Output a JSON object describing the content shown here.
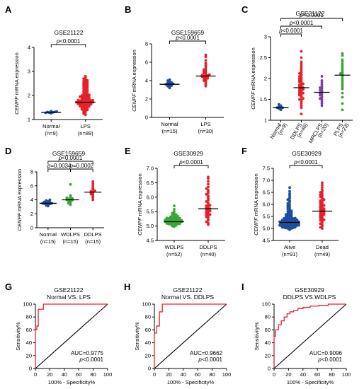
{
  "chart_data": [
    {
      "panel": "A",
      "type": "scatter",
      "title": "GSE21122",
      "ylabel": "CENPF mRNA expression",
      "ylim": [
        1,
        4
      ],
      "yticks": [
        1,
        2,
        3,
        4
      ],
      "groups": [
        {
          "name": "Normal",
          "n": "(n=9)",
          "color": "#1f4e9c",
          "median": 1.3,
          "values": [
            1.27,
            1.29,
            1.3,
            1.31,
            1.32,
            1.28,
            1.33,
            1.26,
            1.35
          ]
        },
        {
          "name": "LPS",
          "n": "(n=89)",
          "color": "#e8202a",
          "median": 1.72,
          "values": [
            1.2,
            1.25,
            1.3,
            1.32,
            1.35,
            1.38,
            1.4,
            1.42,
            1.44,
            1.45,
            1.47,
            1.48,
            1.5,
            1.5,
            1.52,
            1.53,
            1.55,
            1.56,
            1.58,
            1.58,
            1.6,
            1.6,
            1.62,
            1.63,
            1.64,
            1.65,
            1.66,
            1.67,
            1.68,
            1.68,
            1.69,
            1.7,
            1.7,
            1.71,
            1.72,
            1.72,
            1.73,
            1.74,
            1.75,
            1.76,
            1.77,
            1.78,
            1.79,
            1.8,
            1.8,
            1.82,
            1.83,
            1.84,
            1.85,
            1.86,
            1.88,
            1.9,
            1.9,
            1.92,
            1.93,
            1.95,
            1.96,
            1.98,
            2.0,
            2.0,
            2.02,
            2.05,
            2.07,
            2.1,
            2.12,
            2.15,
            2.18,
            2.2,
            2.22,
            2.25,
            2.28,
            2.3,
            2.33,
            2.35,
            2.38,
            2.4,
            2.42,
            2.45,
            2.48,
            2.5,
            2.52,
            2.55,
            2.58,
            2.6,
            2.63,
            2.65,
            2.7,
            2.75,
            2.8
          ]
        }
      ],
      "comparisons": [
        {
          "from": 0,
          "to": 1,
          "text": "p<0.0001"
        }
      ]
    },
    {
      "panel": "B",
      "type": "scatter",
      "title": "GSE159659",
      "ylabel": "CENPF mRNA expression",
      "ylim": [
        0,
        8
      ],
      "yticks": [
        0,
        2,
        4,
        6,
        8
      ],
      "groups": [
        {
          "name": "Normal",
          "n": "(n=15)",
          "color": "#1f4e9c",
          "median": 3.6,
          "values": [
            3.2,
            3.3,
            3.4,
            3.45,
            3.5,
            3.55,
            3.6,
            3.6,
            3.65,
            3.7,
            3.75,
            3.8,
            3.9,
            4.0,
            4.1
          ]
        },
        {
          "name": "LPS",
          "n": "(n=30)",
          "color": "#e8202a",
          "median": 4.5,
          "values": [
            3.4,
            3.6,
            3.8,
            3.9,
            4.0,
            4.1,
            4.2,
            4.25,
            4.3,
            4.35,
            4.4,
            4.45,
            4.5,
            4.5,
            4.55,
            4.6,
            4.65,
            4.7,
            4.8,
            4.9,
            5.0,
            5.1,
            5.2,
            5.3,
            5.5,
            5.7,
            5.9,
            6.2,
            6.6,
            6.8
          ]
        }
      ],
      "comparisons": [
        {
          "from": 0,
          "to": 1,
          "text": "p<0.0001"
        }
      ]
    },
    {
      "panel": "C",
      "type": "scatter",
      "title": "GSE21122",
      "ylabel": "CENPF mRNA expression",
      "ylim": [
        1.0,
        3.0
      ],
      "yticks": [
        1.0,
        1.5,
        2.0,
        2.5,
        3.0
      ],
      "rotated_xlabels": true,
      "groups": [
        {
          "name": "Normal",
          "n": "(n=9)",
          "color": "#1f4e9c",
          "median": 1.3,
          "values": [
            1.25,
            1.27,
            1.28,
            1.3,
            1.3,
            1.31,
            1.33,
            1.35,
            1.38
          ]
        },
        {
          "name": "DDLPS",
          "n": "(n=46)",
          "color": "#e8202a",
          "median": 1.78,
          "values": [
            1.15,
            1.3,
            1.35,
            1.4,
            1.45,
            1.48,
            1.5,
            1.52,
            1.55,
            1.57,
            1.6,
            1.62,
            1.63,
            1.65,
            1.67,
            1.68,
            1.7,
            1.72,
            1.74,
            1.75,
            1.77,
            1.78,
            1.8,
            1.82,
            1.84,
            1.85,
            1.87,
            1.9,
            1.92,
            1.94,
            1.96,
            1.98,
            2.0,
            2.02,
            2.05,
            2.08,
            2.1,
            2.12,
            2.15,
            2.2,
            2.25,
            2.3,
            2.35,
            2.4,
            2.5,
            2.65
          ]
        },
        {
          "name": "MRCLPS",
          "n": "(n=20)",
          "color": "#7b3fa6",
          "median": 1.67,
          "values": [
            1.35,
            1.4,
            1.45,
            1.5,
            1.52,
            1.55,
            1.58,
            1.6,
            1.63,
            1.65,
            1.68,
            1.7,
            1.72,
            1.75,
            1.78,
            1.8,
            1.85,
            1.9,
            1.95,
            2.05
          ]
        },
        {
          "name": "PLPS",
          "n": "(n=23)",
          "color": "#3aa635",
          "median": 2.08,
          "values": [
            1.25,
            1.4,
            1.55,
            1.65,
            1.75,
            1.8,
            1.85,
            1.9,
            1.95,
            2.0,
            2.05,
            2.08,
            2.1,
            2.12,
            2.15,
            2.2,
            2.25,
            2.3,
            2.35,
            2.4,
            2.45,
            2.55,
            2.6
          ]
        }
      ],
      "comparisons": [
        {
          "from": 0,
          "to": 1,
          "text": "p<0.0001"
        },
        {
          "from": 0,
          "to": 2,
          "text": "p<0.0001"
        },
        {
          "from": 0,
          "to": 3,
          "text": "p<0.0001"
        }
      ]
    },
    {
      "panel": "D",
      "type": "scatter",
      "title": "GSE159659",
      "ylabel": "CENPF mRNA expression",
      "ylim": [
        0,
        8
      ],
      "yticks": [
        0,
        2,
        4,
        6,
        8
      ],
      "groups": [
        {
          "name": "Normal",
          "n": "(n=15)",
          "color": "#1f4e9c",
          "median": 3.5,
          "values": [
            3.1,
            3.2,
            3.3,
            3.35,
            3.4,
            3.45,
            3.5,
            3.5,
            3.55,
            3.6,
            3.65,
            3.7,
            3.8,
            3.9,
            4.0
          ]
        },
        {
          "name": "WDLPS",
          "n": "(n=15)",
          "color": "#3aa635",
          "median": 4.0,
          "values": [
            3.3,
            3.5,
            3.6,
            3.7,
            3.8,
            3.9,
            3.95,
            4.0,
            4.05,
            4.1,
            4.2,
            4.3,
            4.4,
            4.6,
            6.2
          ]
        },
        {
          "name": "DDLPS",
          "n": "(n=15)",
          "color": "#e8202a",
          "median": 5.1,
          "values": [
            4.0,
            4.3,
            4.5,
            4.7,
            4.8,
            4.9,
            5.0,
            5.1,
            5.2,
            5.3,
            5.5,
            5.7,
            6.0,
            6.3,
            6.6
          ]
        }
      ],
      "comparisons": [
        {
          "from": 0,
          "to": 2,
          "text": "p<0.0001"
        },
        {
          "from": 0,
          "to": 1,
          "text": "p=0.0034"
        },
        {
          "from": 1,
          "to": 2,
          "text": "p=0.0002"
        }
      ]
    },
    {
      "panel": "E",
      "type": "scatter",
      "title": "GSE30929",
      "ylabel": "CENPF mRNA expression",
      "ylim": [
        4.5,
        7.0
      ],
      "yticks": [
        4.5,
        5.0,
        5.5,
        6.0,
        6.5,
        7.0
      ],
      "ytick_format": "1",
      "groups": [
        {
          "name": "WDLPS",
          "n": "(n=52)",
          "color": "#3aa635",
          "median": 5.15,
          "values": [
            4.98,
            5.0,
            5.02,
            5.03,
            5.04,
            5.05,
            5.06,
            5.07,
            5.07,
            5.08,
            5.09,
            5.1,
            5.1,
            5.11,
            5.12,
            5.12,
            5.13,
            5.14,
            5.14,
            5.15,
            5.15,
            5.16,
            5.16,
            5.17,
            5.17,
            5.18,
            5.18,
            5.19,
            5.2,
            5.2,
            5.21,
            5.22,
            5.22,
            5.23,
            5.24,
            5.25,
            5.26,
            5.27,
            5.28,
            5.29,
            5.3,
            5.31,
            5.32,
            5.34,
            5.36,
            5.38,
            5.4,
            5.42,
            5.45,
            5.5,
            5.58,
            5.7
          ]
        },
        {
          "name": "DDLPS",
          "n": "(n=40)",
          "color": "#e8202a",
          "median": 5.6,
          "values": [
            5.05,
            5.1,
            5.15,
            5.2,
            5.25,
            5.3,
            5.32,
            5.35,
            5.38,
            5.4,
            5.42,
            5.45,
            5.48,
            5.5,
            5.52,
            5.55,
            5.57,
            5.6,
            5.62,
            5.65,
            5.68,
            5.7,
            5.72,
            5.75,
            5.8,
            5.85,
            5.9,
            5.95,
            6.0,
            6.05,
            6.1,
            6.15,
            6.2,
            6.25,
            6.3,
            6.35,
            6.45,
            6.55,
            6.65,
            6.7
          ]
        }
      ],
      "comparisons": [
        {
          "from": 0,
          "to": 1,
          "text": "p<0.0001"
        }
      ]
    },
    {
      "panel": "F",
      "type": "scatter",
      "title": "GSE30929",
      "ylabel": "CENPF mRNA expression",
      "ylim": [
        4.5,
        7.5
      ],
      "yticks": [
        4.5,
        5.0,
        5.5,
        6.0,
        6.5,
        7.0,
        7.5
      ],
      "ytick_format": "1",
      "groups": [
        {
          "name": "Alive",
          "n": "(n=91)",
          "color": "#1f4e9c",
          "median": 5.25,
          "values": [
            4.95,
            4.98,
            5.0,
            5.0,
            5.02,
            5.03,
            5.04,
            5.05,
            5.05,
            5.06,
            5.07,
            5.08,
            5.08,
            5.09,
            5.1,
            5.1,
            5.11,
            5.12,
            5.12,
            5.13,
            5.13,
            5.14,
            5.15,
            5.15,
            5.16,
            5.16,
            5.17,
            5.18,
            5.18,
            5.19,
            5.2,
            5.2,
            5.21,
            5.22,
            5.22,
            5.23,
            5.24,
            5.24,
            5.25,
            5.25,
            5.26,
            5.27,
            5.28,
            5.28,
            5.29,
            5.3,
            5.3,
            5.31,
            5.32,
            5.33,
            5.34,
            5.35,
            5.36,
            5.37,
            5.38,
            5.39,
            5.4,
            5.41,
            5.42,
            5.43,
            5.45,
            5.46,
            5.48,
            5.5,
            5.52,
            5.54,
            5.56,
            5.58,
            5.6,
            5.62,
            5.65,
            5.68,
            5.7,
            5.73,
            5.76,
            5.8,
            5.84,
            5.88,
            5.92,
            5.96,
            6.0,
            6.05,
            6.1,
            6.15,
            6.2,
            6.25,
            6.3,
            6.38,
            6.45,
            6.55,
            6.7
          ]
        },
        {
          "name": "Dead",
          "n": "(n=49)",
          "color": "#e8202a",
          "median": 5.72,
          "values": [
            5.0,
            5.05,
            5.1,
            5.15,
            5.2,
            5.25,
            5.3,
            5.33,
            5.36,
            5.4,
            5.43,
            5.46,
            5.5,
            5.52,
            5.55,
            5.58,
            5.6,
            5.63,
            5.66,
            5.7,
            5.72,
            5.74,
            5.77,
            5.8,
            5.82,
            5.85,
            5.88,
            5.9,
            5.93,
            5.96,
            6.0,
            6.03,
            6.06,
            6.1,
            6.13,
            6.16,
            6.2,
            6.24,
            6.28,
            6.32,
            6.36,
            6.4,
            6.45,
            6.5,
            6.55,
            6.6,
            6.7,
            6.8,
            6.9
          ]
        }
      ],
      "comparisons": [
        {
          "from": 0,
          "to": 1,
          "text": "p<0.0001"
        }
      ]
    },
    {
      "panel": "G",
      "type": "line",
      "title": "GSE21122",
      "subtitle": "Normal VS. LPS",
      "xlabel": "100% - Specificity%",
      "ylabel": "Sensitivity%",
      "xlim": [
        0,
        100
      ],
      "ylim": [
        0,
        100
      ],
      "ticks": [
        0,
        20,
        40,
        60,
        80,
        100
      ],
      "auc": "AUC=0.9775",
      "pvalue": "p<0.0001",
      "roc_x": [
        0,
        0,
        0,
        0,
        0,
        2,
        2,
        4,
        4,
        11,
        11,
        100
      ],
      "roc_y": [
        0,
        30,
        55,
        57,
        60,
        60,
        66,
        66,
        92,
        92,
        100,
        100
      ]
    },
    {
      "panel": "H",
      "type": "line",
      "title": "GSE21122",
      "subtitle": "Normal VS. DDLPS",
      "xlabel": "100% - Specificity%",
      "ylabel": "Sensitivity%",
      "xlim": [
        0,
        100
      ],
      "ylim": [
        0,
        100
      ],
      "ticks": [
        0,
        20,
        40,
        60,
        80,
        100
      ],
      "auc": "AUC=0.9662",
      "pvalue": "p<0.0001",
      "roc_x": [
        0,
        0,
        0,
        3,
        3,
        7,
        7,
        11,
        11,
        100
      ],
      "roc_y": [
        0,
        45,
        55,
        55,
        66,
        66,
        88,
        88,
        100,
        100
      ]
    },
    {
      "panel": "I",
      "type": "line",
      "title": "GSE30929",
      "subtitle": "DDLPS VS.WDLPS",
      "xlabel": "100% - Specificity%",
      "ylabel": "Sensitivity%",
      "xlim": [
        0,
        100
      ],
      "ylim": [
        0,
        100
      ],
      "ticks": [
        0,
        20,
        40,
        60,
        80,
        100
      ],
      "auc": "AUC=0.9096",
      "pvalue": "p<0.0001",
      "roc_x": [
        0,
        0,
        2,
        2,
        6,
        6,
        10,
        10,
        14,
        14,
        18,
        18,
        22,
        22,
        27,
        27,
        33,
        33,
        40,
        40,
        50,
        50,
        62,
        62,
        75,
        75,
        100
      ],
      "roc_y": [
        0,
        50,
        50,
        60,
        60,
        68,
        68,
        74,
        74,
        80,
        80,
        85,
        85,
        88,
        88,
        90,
        90,
        93,
        93,
        95,
        95,
        97,
        97,
        98,
        98,
        100,
        100
      ]
    }
  ]
}
